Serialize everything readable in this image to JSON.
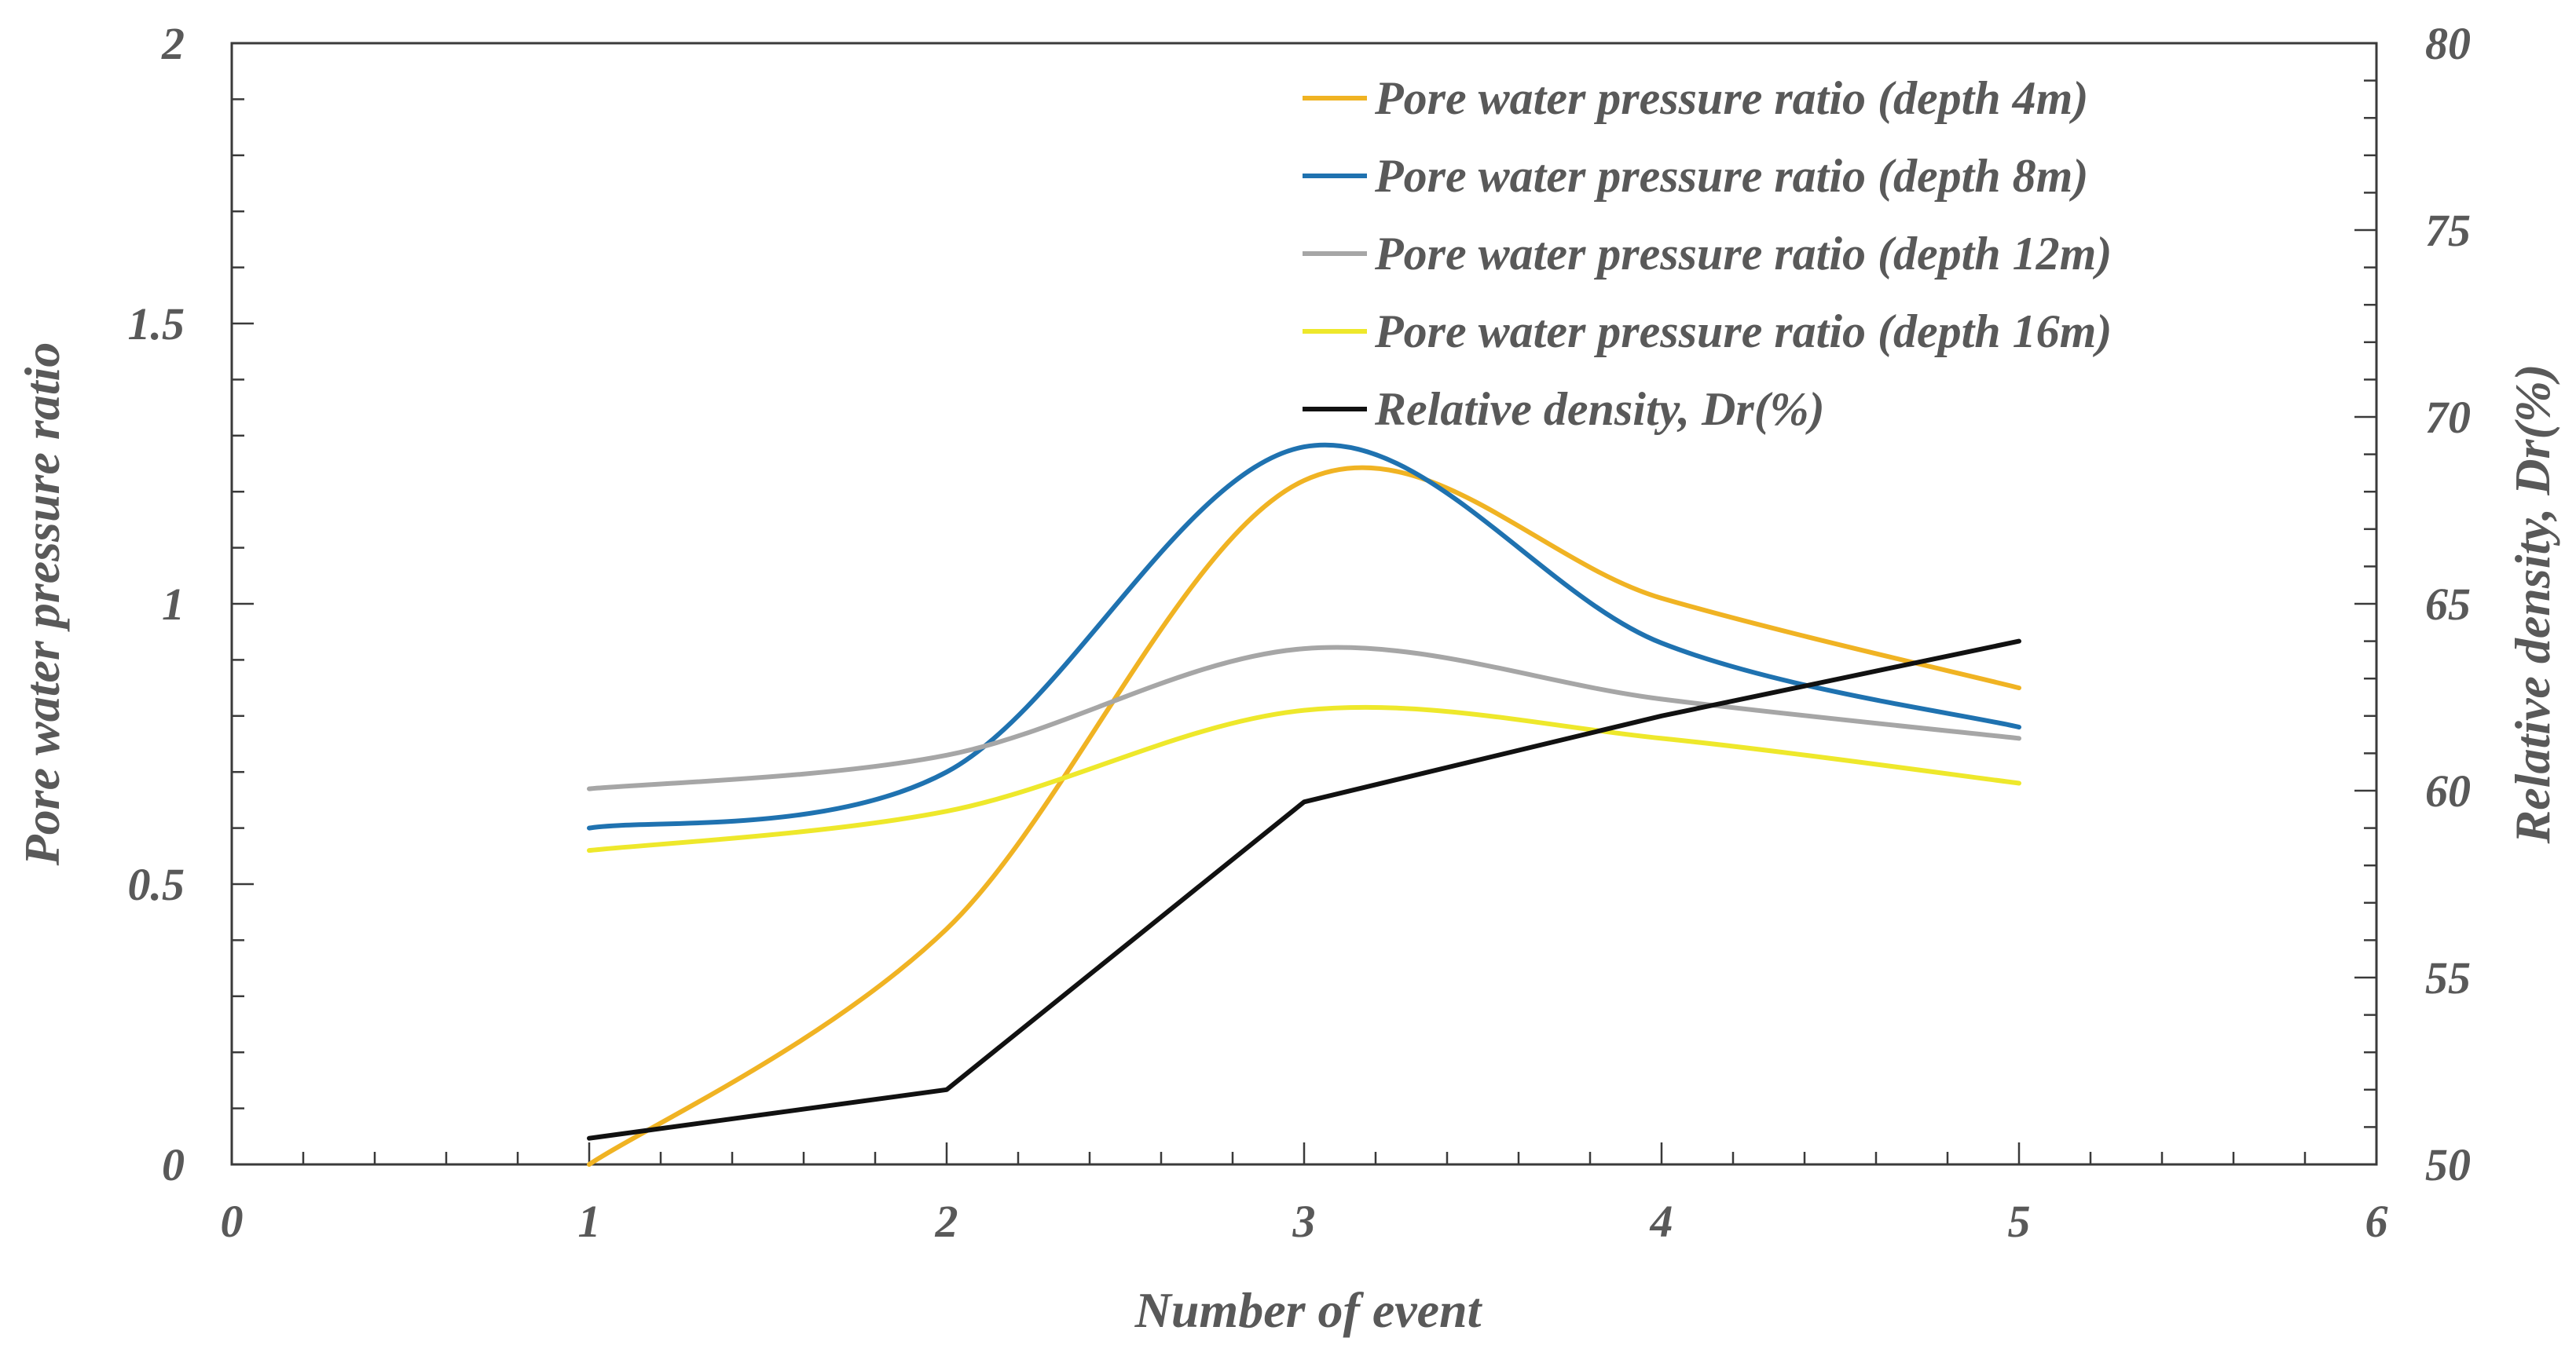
{
  "chart_data": {
    "type": "line",
    "xlabel": "Number of event",
    "ylabel": "Pore water pressure ratio",
    "y2label": "Relative density, Dr(%)",
    "xlim": [
      0,
      6
    ],
    "ylim": [
      0,
      2
    ],
    "y2lim": [
      50,
      80
    ],
    "x_ticks": [
      0,
      1,
      2,
      3,
      4,
      5,
      6
    ],
    "x_tick_labels": [
      "0",
      "1",
      "2",
      "3",
      "4",
      "5",
      "6"
    ],
    "y_ticks": [
      0,
      0.5,
      1,
      1.5,
      2
    ],
    "y_tick_labels": [
      "0",
      "0.5",
      "1",
      "1.5",
      "2"
    ],
    "y2_ticks": [
      50,
      55,
      60,
      65,
      70,
      75,
      80
    ],
    "y2_tick_labels": [
      "50",
      "55",
      "60",
      "65",
      "70",
      "75",
      "80"
    ],
    "grid": false,
    "legend_position": "top-right",
    "series": [
      {
        "name": "Pore water pressure ratio (depth 4m)",
        "axis": "left",
        "smooth": true,
        "color": "#F0B323",
        "x": [
          1,
          2,
          3,
          4,
          5
        ],
        "values": [
          0.0,
          0.42,
          1.22,
          1.01,
          0.85
        ]
      },
      {
        "name": "Pore water pressure ratio (depth 8m)",
        "axis": "left",
        "smooth": true,
        "color": "#1F72B0",
        "x": [
          1,
          2,
          3,
          4,
          5
        ],
        "values": [
          0.6,
          0.7,
          1.28,
          0.93,
          0.78
        ]
      },
      {
        "name": "Pore water pressure ratio (depth 12m)",
        "axis": "left",
        "smooth": true,
        "color": "#A6A6A6",
        "x": [
          1,
          2,
          3,
          4,
          5
        ],
        "values": [
          0.67,
          0.73,
          0.92,
          0.83,
          0.76
        ]
      },
      {
        "name": "Pore water pressure ratio (depth 16m)",
        "axis": "left",
        "smooth": true,
        "color": "#EEE82B",
        "x": [
          1,
          2,
          3,
          4,
          5
        ],
        "values": [
          0.56,
          0.63,
          0.81,
          0.76,
          0.68
        ]
      },
      {
        "name": "Relative density, Dr(%)",
        "axis": "right",
        "smooth": false,
        "color": "#111111",
        "x": [
          1,
          2,
          3,
          4,
          5
        ],
        "values": [
          50.7,
          52.0,
          59.7,
          62.0,
          64.0
        ]
      }
    ]
  }
}
